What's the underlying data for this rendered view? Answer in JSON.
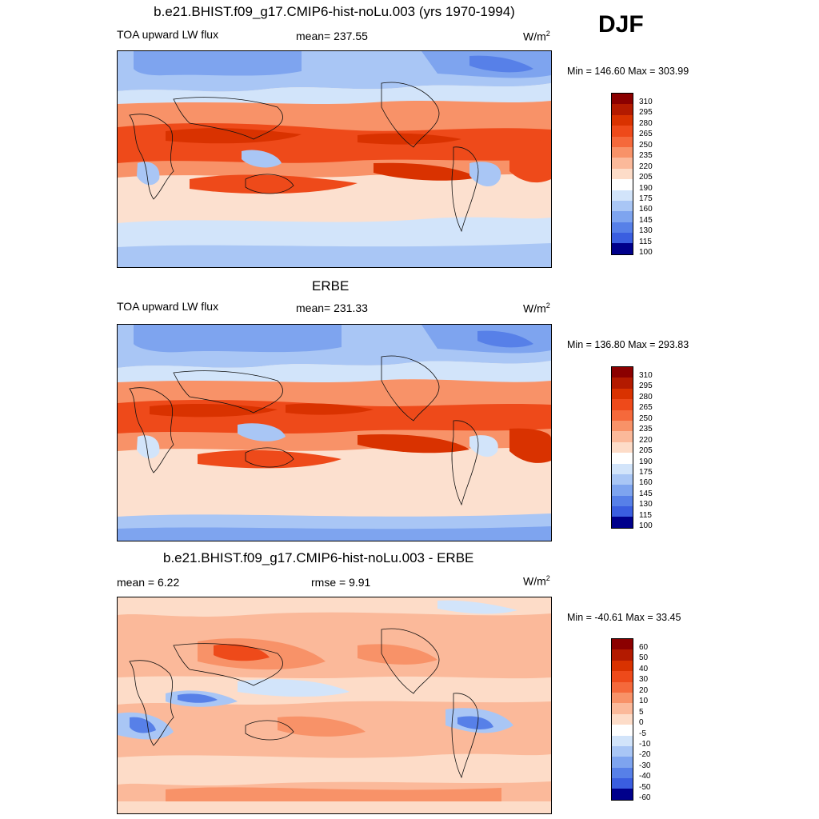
{
  "season": "DJF",
  "panels": [
    {
      "title": "b.e21.BHIST.f09_g17.CMIP6-hist-noLu.003 (yrs 1970-1994)",
      "left_label": "TOA upward LW flux",
      "center_label": "mean= 237.55",
      "units": "W/m",
      "units_sup": "2",
      "minmax": "Min = 146.60 Max = 303.99",
      "colorbar": {
        "labels": [
          "310",
          "295",
          "280",
          "265",
          "250",
          "235",
          "220",
          "205",
          "190",
          "175",
          "160",
          "145",
          "130",
          "115",
          "100"
        ],
        "colors": [
          "#8b0000",
          "#b31a00",
          "#d93200",
          "#ee4a1a",
          "#f5693b",
          "#f89268",
          "#fbb99a",
          "#fddcc8",
          "#ffffff",
          "#d2e4fa",
          "#a9c6f5",
          "#7ea4ef",
          "#5780e8",
          "#3a5ee0",
          "#2240cf",
          "#0c1fa8",
          "#00008b"
        ]
      },
      "min": 146.6,
      "max": 303.99
    },
    {
      "title": "ERBE",
      "left_label": "TOA upward LW flux",
      "center_label": "mean= 231.33",
      "units": "W/m",
      "units_sup": "2",
      "minmax": "Min = 136.80 Max = 293.83",
      "colorbar": {
        "labels": [
          "310",
          "295",
          "280",
          "265",
          "250",
          "235",
          "220",
          "205",
          "190",
          "175",
          "160",
          "145",
          "130",
          "115",
          "100"
        ],
        "colors": [
          "#8b0000",
          "#b31a00",
          "#d93200",
          "#ee4a1a",
          "#f5693b",
          "#f89268",
          "#fbb99a",
          "#fddcc8",
          "#ffffff",
          "#d2e4fa",
          "#a9c6f5",
          "#7ea4ef",
          "#5780e8",
          "#3a5ee0",
          "#2240cf",
          "#0c1fa8",
          "#00008b"
        ]
      },
      "min": 136.8,
      "max": 293.83
    },
    {
      "title": "b.e21.BHIST.f09_g17.CMIP6-hist-noLu.003 - ERBE",
      "left_label": "mean =   6.22",
      "center_label": "rmse =   9.91",
      "units": "W/m",
      "units_sup": "2",
      "minmax": "Min = -40.61 Max =  33.45",
      "colorbar": {
        "labels": [
          "60",
          "50",
          "40",
          "30",
          "20",
          "10",
          "5",
          "0",
          "-5",
          "-10",
          "-20",
          "-30",
          "-40",
          "-50",
          "-60"
        ],
        "colors": [
          "#8b0000",
          "#b31a00",
          "#d93200",
          "#ee4a1a",
          "#f5693b",
          "#f89268",
          "#fbb99a",
          "#fddcc8",
          "#ffffff",
          "#d2e4fa",
          "#a9c6f5",
          "#7ea4ef",
          "#5780e8",
          "#3a5ee0",
          "#2240cf",
          "#0c1fa8",
          "#00008b"
        ]
      },
      "mean": 6.22,
      "rmse": 9.91,
      "min": -40.61,
      "max": 33.45
    }
  ]
}
